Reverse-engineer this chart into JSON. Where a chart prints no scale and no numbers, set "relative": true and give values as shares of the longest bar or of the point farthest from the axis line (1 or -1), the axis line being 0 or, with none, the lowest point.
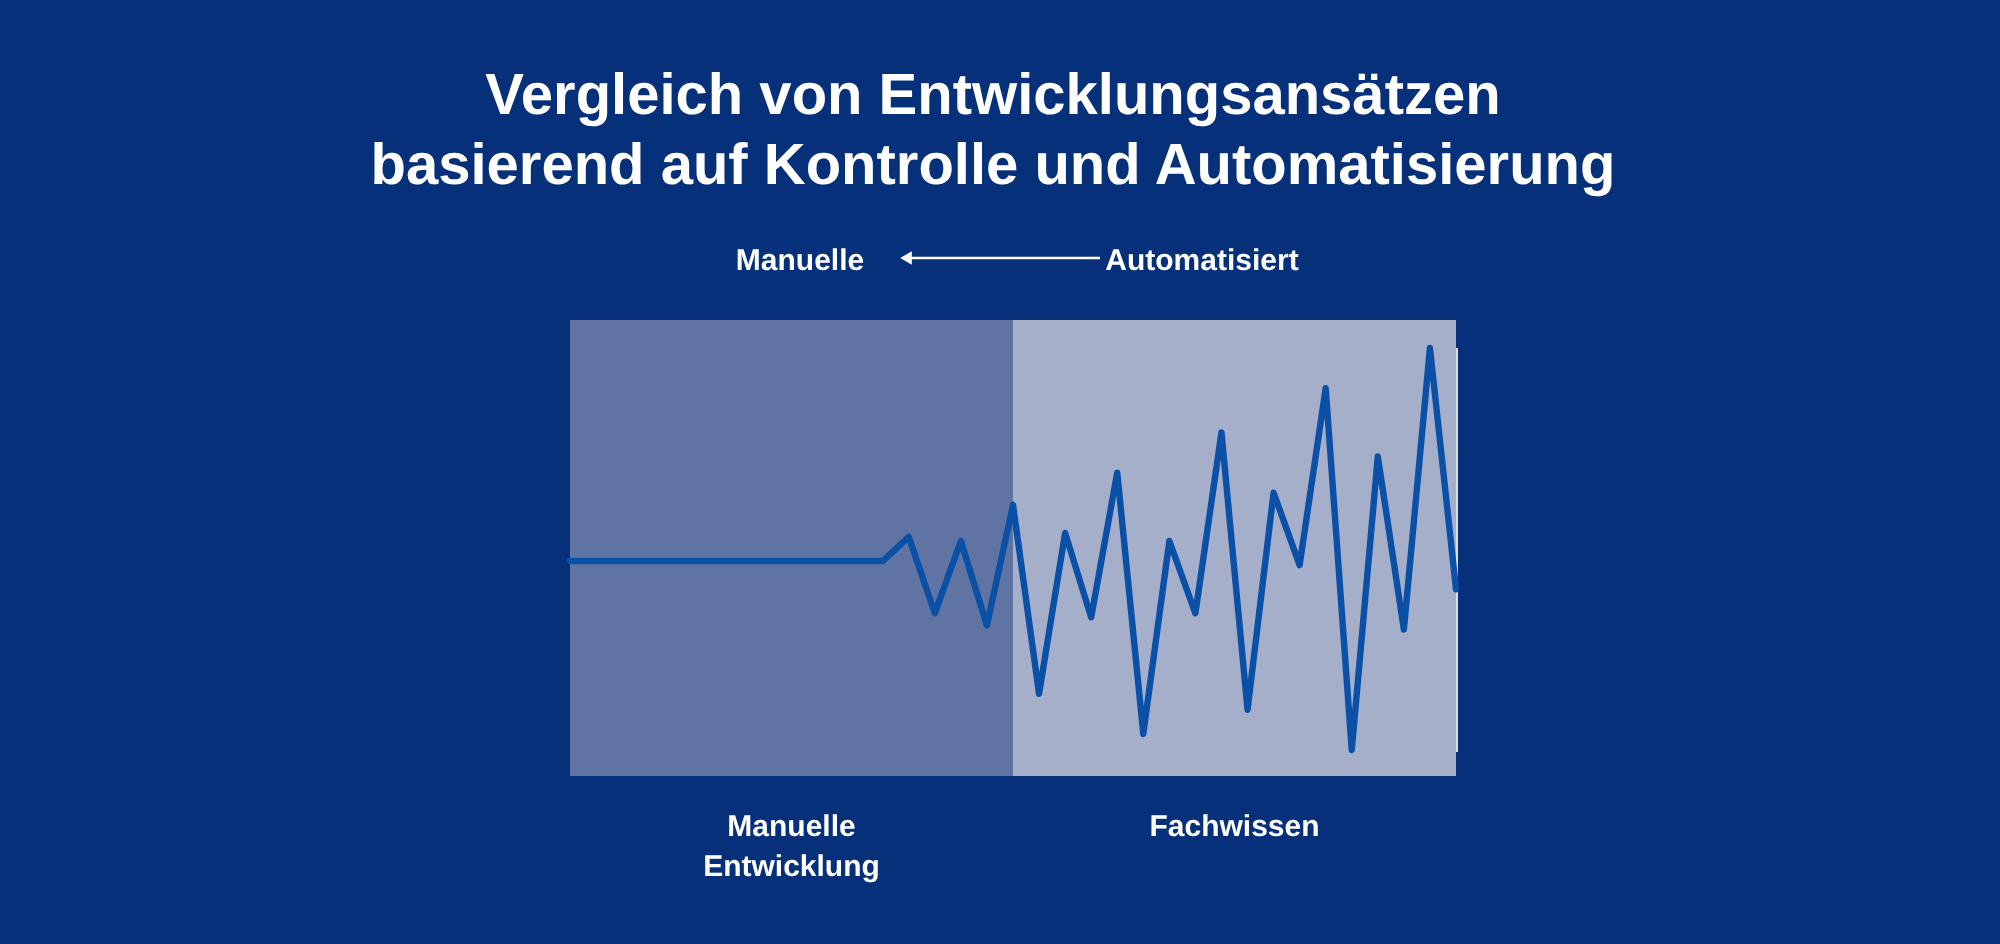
{
  "chart_data": {
    "type": "line",
    "title": "Vergleich von Entwicklungsansätzen\nbasierend auf Kontrolle und Automatisierung",
    "annotations": [
      "Manuelle",
      "Automatisiert",
      "Manuelle\nEntwicklung",
      "Fachwissen"
    ],
    "relative": true,
    "categories": [
      null,
      null,
      null,
      null,
      null,
      null,
      null,
      null,
      null,
      null,
      null,
      null,
      null,
      null,
      null,
      null,
      null,
      null,
      null,
      null,
      null,
      null,
      null,
      null,
      null,
      null,
      null,
      null,
      null,
      null,
      null,
      null,
      null,
      null,
      null
    ],
    "values": [
      0.47,
      0.47,
      0.47,
      0.47,
      0.47,
      0.47,
      0.47,
      0.47,
      0.47,
      0.47,
      0.47,
      0.47,
      0.47,
      0.53,
      0.34,
      0.52,
      0.31,
      0.61,
      0.14,
      0.54,
      0.33,
      0.69,
      0.04,
      0.52,
      0.34,
      0.79,
      0.1,
      0.64,
      0.46,
      0.9,
      0,
      0.73,
      0.3,
      1,
      0.4
    ],
    "color": "#0a50a6"
  }
}
